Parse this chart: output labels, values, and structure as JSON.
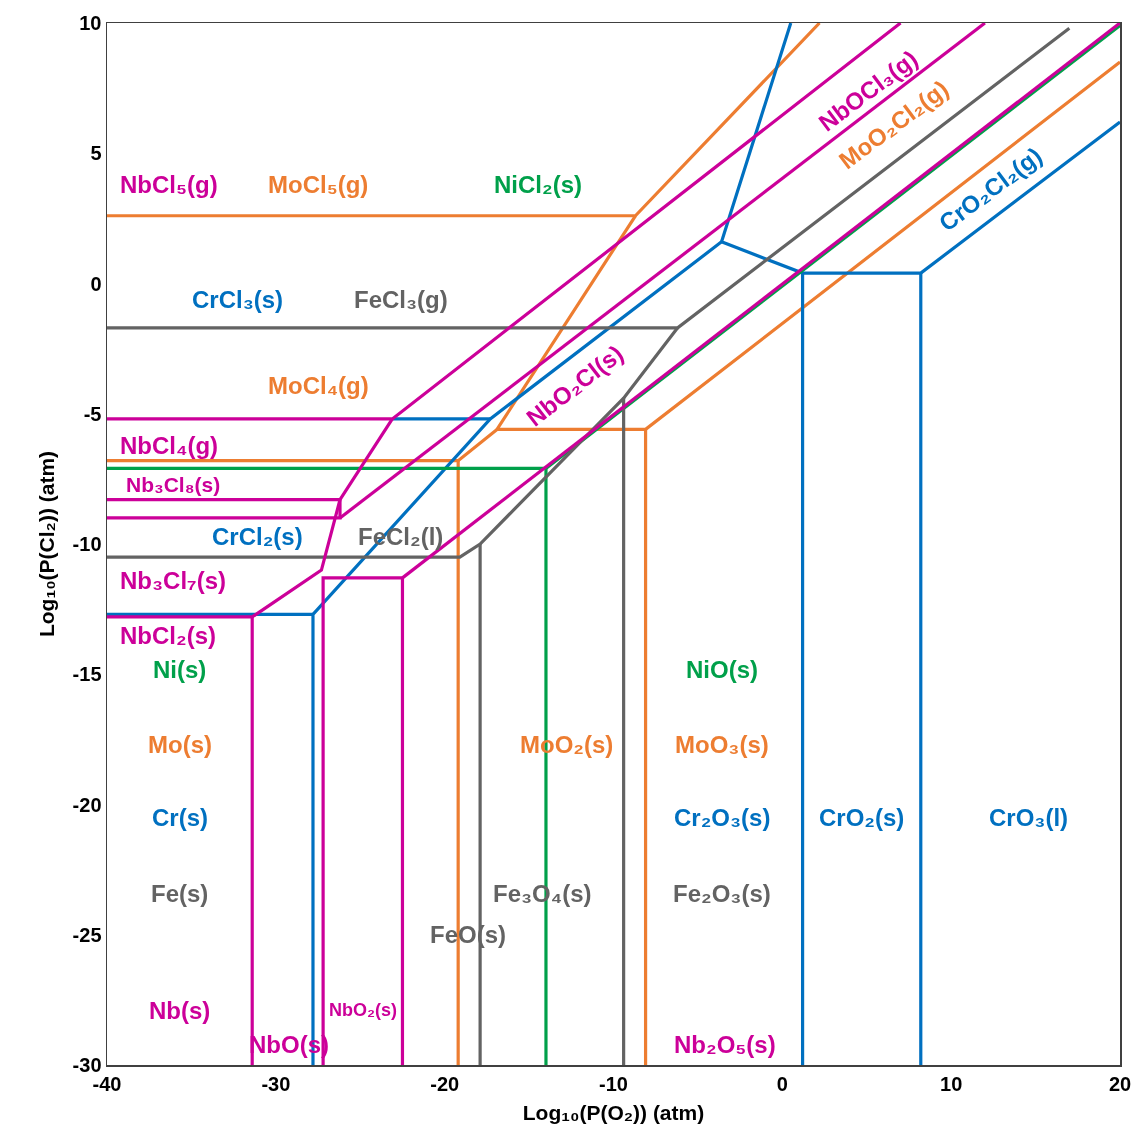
{
  "chart_data": {
    "type": "line",
    "xlabel": "Log₁₀(P(O₂)) (atm)",
    "ylabel": "Log₁₀(P(Cl₂)) (atm)",
    "xlim": [
      -40,
      20
    ],
    "xticks": [
      -40,
      -30,
      -20,
      -10,
      0,
      10,
      20
    ],
    "ylim": [
      -30,
      10
    ],
    "yticks": [
      -30,
      -25,
      -20,
      -15,
      -10,
      -5,
      0,
      5,
      10
    ],
    "grid": false,
    "marker": "none",
    "line_style": "solid",
    "series": [
      {
        "color": "#ed7d31",
        "x": [
          -40,
          -8.7,
          2.2,
          null,
          -8.7,
          -16.9,
          -8.1,
          20,
          null,
          -8.1,
          -8.1,
          null,
          -16.9,
          -19.2,
          -40,
          null,
          -19.2,
          -19.2
        ],
        "values": [
          2.6,
          2.6,
          10,
          null,
          2.6,
          -5.6,
          -5.6,
          8.5,
          null,
          -5.6,
          -30,
          null,
          -5.6,
          -6.8,
          -6.8,
          null,
          -6.8,
          -30
        ]
      },
      {
        "color": "#0070c0",
        "x": [
          0.5,
          -3.6,
          1.2,
          8.2,
          20,
          null,
          1.2,
          1.2,
          null,
          8.2,
          8.2,
          null,
          -3.6,
          -17.3,
          -27.8,
          -27.8,
          null,
          -27.8,
          -40,
          null,
          -23.1,
          -17.3
        ],
        "values": [
          10,
          1.6,
          0.4,
          0.4,
          6.2,
          null,
          0.4,
          -30,
          null,
          0.4,
          -30,
          null,
          1.6,
          -5.2,
          -12.7,
          -30,
          null,
          -12.7,
          -12.7,
          null,
          -5.2,
          -5.2
        ]
      },
      {
        "color": "#00a04a",
        "x": [
          -40,
          -14,
          20,
          null,
          -14,
          -14
        ],
        "values": [
          -7.1,
          -7.1,
          9.9,
          null,
          -7.1,
          -30
        ]
      },
      {
        "color": "#636363",
        "x": [
          -40,
          -6.2,
          17,
          null,
          -6.2,
          -9.4,
          -17.9,
          -19.1,
          -40,
          null,
          -9.4,
          -9.4,
          null,
          -17.9,
          -17.9
        ],
        "values": [
          -1.7,
          -1.7,
          9.8,
          null,
          -1.7,
          -4.4,
          -10,
          -10.5,
          -10.5,
          null,
          -4.4,
          -30,
          null,
          -10,
          -30
        ]
      },
      {
        "color": "#cc0099",
        "x": [
          -40,
          -23.1,
          7,
          null,
          -23.1,
          -26.2,
          -27.3,
          -31.4,
          -40,
          null,
          -31.4,
          -31.4,
          null,
          -40,
          -26.2,
          -26.2,
          -40,
          null,
          -26.2,
          12,
          null,
          -27.2,
          -27.2,
          -22.5,
          -22.5,
          null,
          -22.5,
          20
        ],
        "values": [
          -5.2,
          -5.2,
          10,
          null,
          -5.2,
          -8.3,
          -11,
          -12.8,
          -12.8,
          null,
          -12.8,
          -30,
          null,
          -8.3,
          -8.3,
          -9,
          -9,
          null,
          -9,
          10,
          null,
          -30,
          -11.3,
          -11.3,
          -30,
          null,
          -11.3,
          10
        ]
      }
    ],
    "annotations": [
      "NbCl₅(g)",
      "MoCl₅(g)",
      "NiCl₂(s)",
      "CrCl₃(s)",
      "FeCl₃(g)",
      "MoCl₄(g)",
      "NbCl₄(g)",
      "Nb₃Cl₈(s)",
      "CrCl₂(s)",
      "FeCl₂(l)",
      "Nb₃Cl₇(s)",
      "NbCl₂(s)",
      "Ni(s)",
      "Mo(s)",
      "Cr(s)",
      "Fe(s)",
      "Nb(s)",
      "NbO(s)",
      "NbO₂(s)",
      "FeO(s)",
      "Fe₃O₄(s)",
      "MoO₂(s)",
      "NiO(s)",
      "MoO₃(s)",
      "Cr₂O₃(s)",
      "Fe₂O₃(s)",
      "Nb₂O₅(s)",
      "CrO₂(s)",
      "CrO₃(l)",
      "NbO₂Cl(s)",
      "NbOCl₃(g)",
      "MoO₂Cl₂(g)",
      "CrO₂Cl₂(g)"
    ]
  }
}
